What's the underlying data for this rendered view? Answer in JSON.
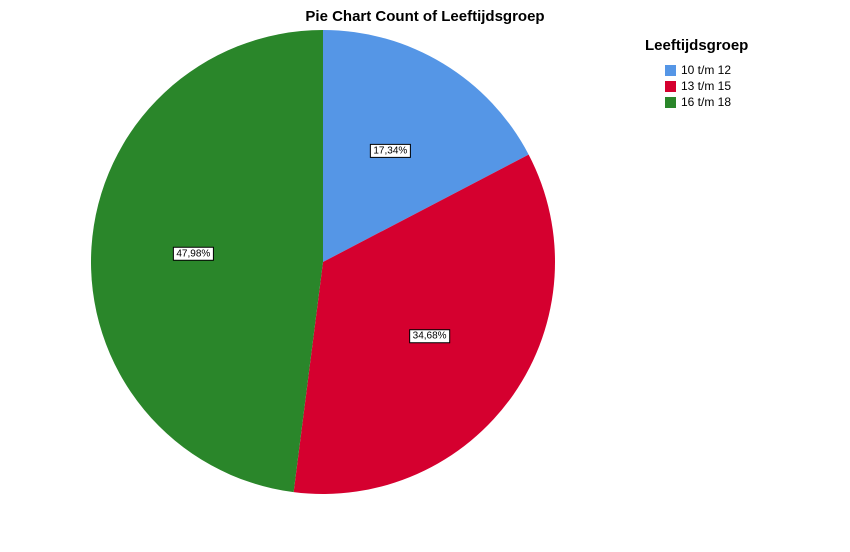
{
  "chart_data": {
    "type": "pie",
    "title": "Pie Chart Count of Leeftijdsgroep",
    "legend_title": "Leeftijdsgroep",
    "legend_position": "top-right",
    "categories": [
      "10 t/m 12",
      "13 t/m 15",
      "16 t/m 18"
    ],
    "values": [
      17.34,
      34.68,
      47.98
    ],
    "labels": [
      "17,34%",
      "34,68%",
      "47,98%"
    ],
    "colors": [
      "#5596e6",
      "#d5002f",
      "#2a862a"
    ]
  }
}
